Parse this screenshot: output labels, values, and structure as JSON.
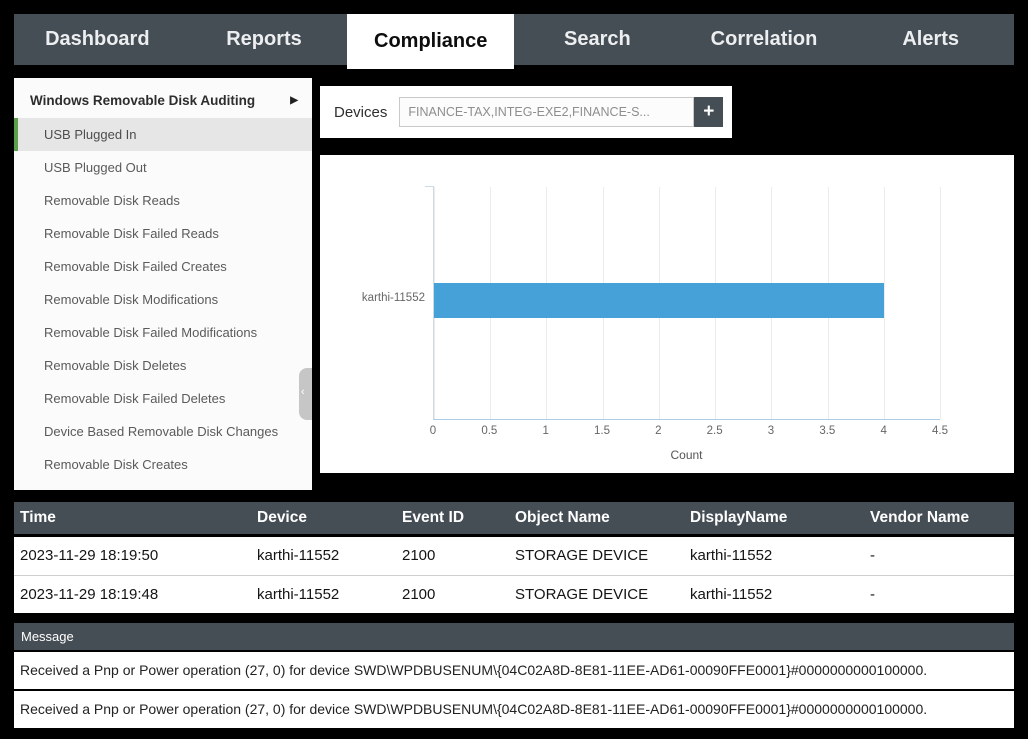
{
  "nav": {
    "tabs": [
      {
        "label": "Dashboard",
        "active": false
      },
      {
        "label": "Reports",
        "active": false
      },
      {
        "label": "Compliance",
        "active": true
      },
      {
        "label": "Search",
        "active": false
      },
      {
        "label": "Correlation",
        "active": false
      },
      {
        "label": "Alerts",
        "active": false
      }
    ]
  },
  "sidebar": {
    "header": "Windows Removable Disk Auditing",
    "expand_arrow": "▶",
    "items": [
      {
        "label": "USB Plugged In",
        "selected": true
      },
      {
        "label": "USB Plugged Out",
        "selected": false
      },
      {
        "label": "Removable Disk Reads",
        "selected": false
      },
      {
        "label": "Removable Disk Failed Reads",
        "selected": false
      },
      {
        "label": "Removable Disk Failed Creates",
        "selected": false
      },
      {
        "label": "Removable Disk Modifications",
        "selected": false
      },
      {
        "label": "Removable Disk Failed Modifications",
        "selected": false
      },
      {
        "label": "Removable Disk Deletes",
        "selected": false
      },
      {
        "label": "Removable Disk Failed Deletes",
        "selected": false
      },
      {
        "label": "Device Based Removable Disk Changes",
        "selected": false
      },
      {
        "label": "Removable Disk Creates",
        "selected": false
      }
    ]
  },
  "devices": {
    "label": "Devices",
    "value": "FINANCE-TAX,INTEG-EXE2,FINANCE-S...",
    "add_button": "+"
  },
  "chart_data": {
    "type": "bar",
    "orientation": "horizontal",
    "categories": [
      "karthi-11552"
    ],
    "values": [
      4
    ],
    "xlabel": "Count",
    "ylabel": "",
    "xticks": [
      0,
      0.5,
      1,
      1.5,
      2,
      2.5,
      3,
      3.5,
      4,
      4.5
    ],
    "xlim": [
      0,
      4.5
    ],
    "grid": true,
    "legend": false,
    "bar_color": "#46a1d8"
  },
  "table": {
    "columns": [
      "Time",
      "Device",
      "Event ID",
      "Object Name",
      "DisplayName",
      "Vendor Name"
    ],
    "rows": [
      [
        "2023-11-29 18:19:50",
        "karthi-11552",
        "2100",
        "STORAGE DEVICE",
        "karthi-11552",
        "-"
      ],
      [
        "2023-11-29 18:19:48",
        "karthi-11552",
        "2100",
        "STORAGE DEVICE",
        "karthi-11552",
        "-"
      ]
    ]
  },
  "message_section": {
    "header": "Message",
    "messages": [
      "Received a Pnp or Power operation (27, 0) for device SWD\\WPDBUSENUM\\{04C02A8D-8E81-11EE-AD61-00090FFE0001}#0000000000100000.",
      "Received a Pnp or Power operation (27, 0) for device SWD\\WPDBUSENUM\\{04C02A8D-8E81-11EE-AD61-00090FFE0001}#0000000000100000."
    ]
  },
  "colors": {
    "nav_background": "#454d55",
    "active_tab_background": "#ffffff",
    "selected_item_accent": "#5ca04c",
    "bar_fill": "#46a1d8",
    "table_header_background": "#454d55",
    "page_background": "#000000"
  }
}
